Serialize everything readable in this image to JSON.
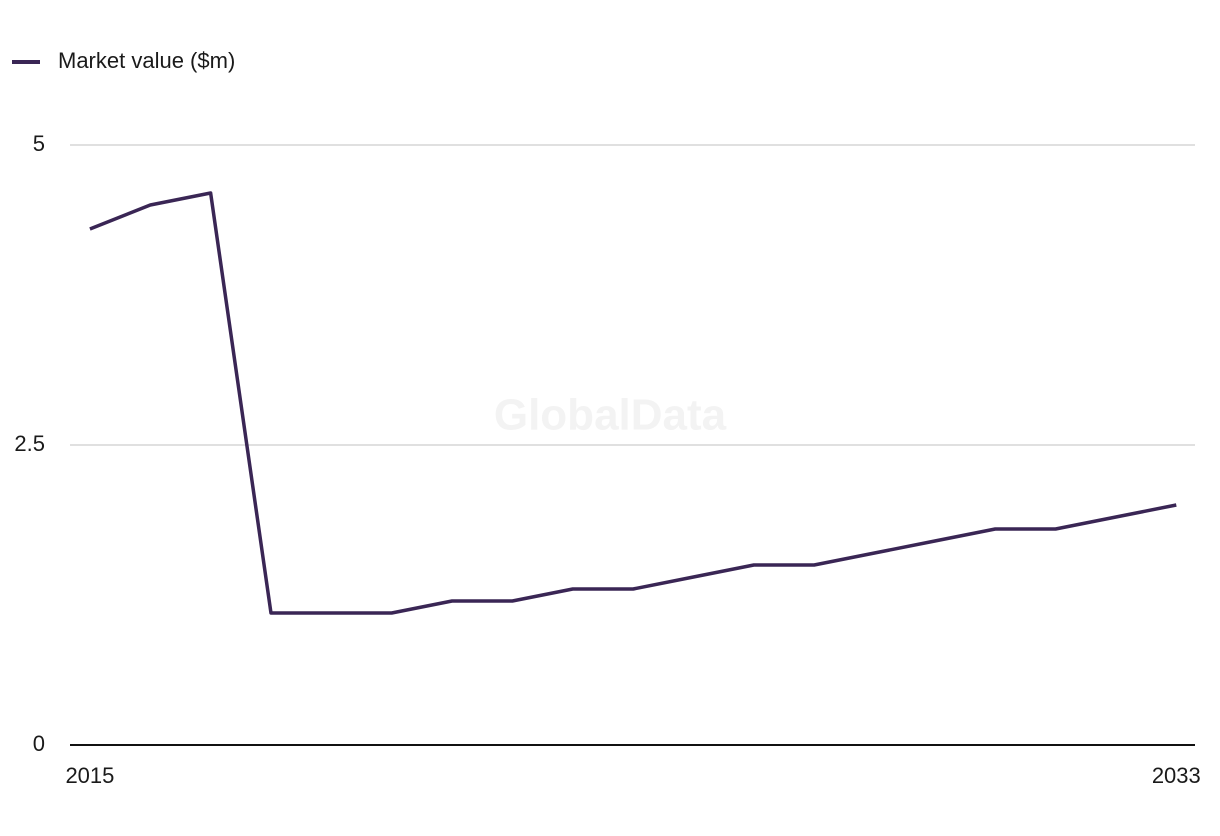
{
  "chart_data": {
    "type": "line",
    "legend": "top-left",
    "watermark": "GlobalData",
    "x": [
      2015,
      2016,
      2017,
      2018,
      2019,
      2020,
      2021,
      2022,
      2023,
      2024,
      2025,
      2026,
      2027,
      2028,
      2029,
      2030,
      2031,
      2032,
      2033
    ],
    "series": [
      {
        "name": "Market value ($m)",
        "color": "#3a2655",
        "values": [
          4.3,
          4.5,
          4.6,
          1.1,
          1.1,
          1.1,
          1.2,
          1.2,
          1.3,
          1.3,
          1.4,
          1.5,
          1.5,
          1.6,
          1.7,
          1.8,
          1.8,
          1.9,
          2.0
        ]
      }
    ],
    "xlim": [
      2014.67,
      2033.31
    ],
    "xticks": [
      2015,
      2033
    ],
    "ylim": [
      0,
      5
    ],
    "yticks": [
      0,
      2.5,
      5
    ],
    "grid": true
  }
}
